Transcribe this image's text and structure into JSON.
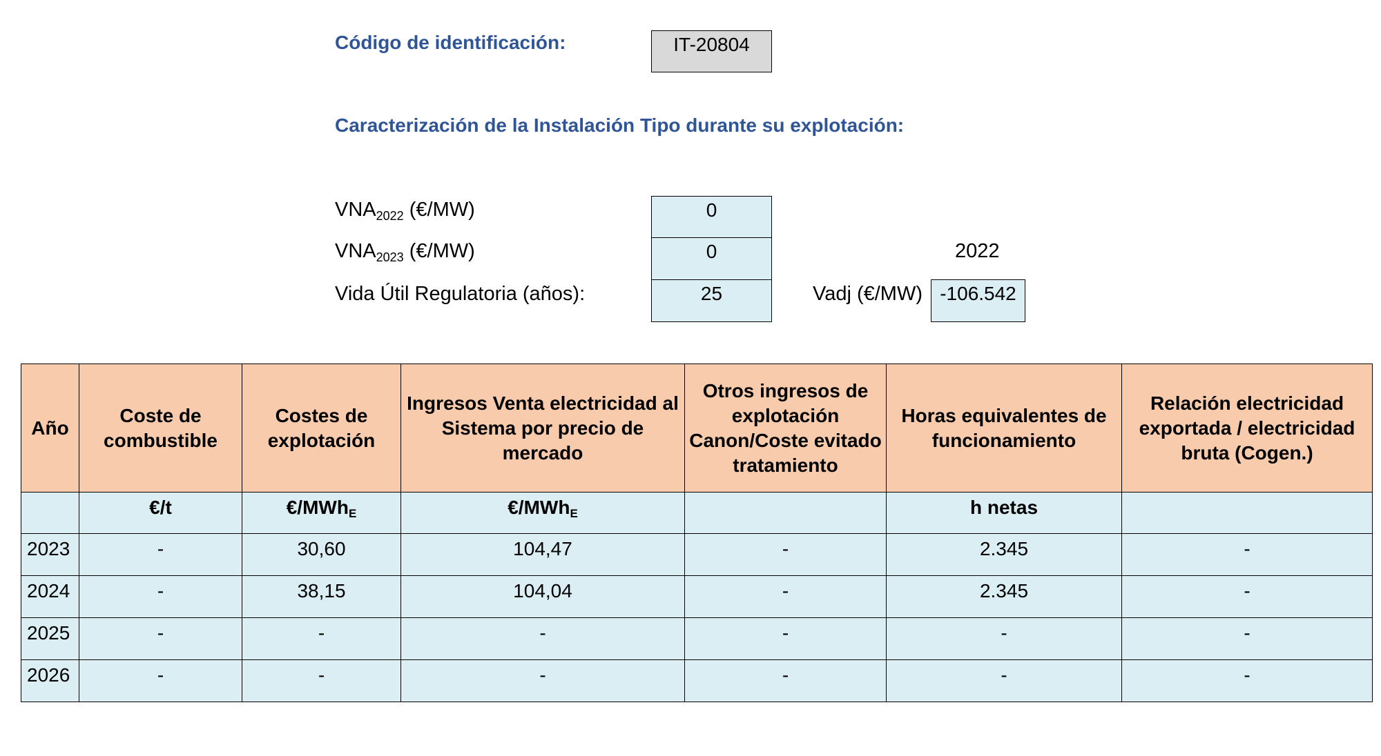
{
  "header": {
    "id_label": "Código de identificación:",
    "id_value": "IT-20804",
    "section_title": "Caracterización de la Instalación Tipo durante su explotación:"
  },
  "params": {
    "vna_2022": {
      "prefix": "VNA",
      "sub": "2022",
      "suffix": " (€/MW)",
      "value": "0"
    },
    "vna_2023": {
      "prefix": "VNA",
      "sub": "2023",
      "suffix": " (€/MW)",
      "value": "0"
    },
    "vida_util": {
      "label": "Vida Útil Regulatoria (años):",
      "value": "25"
    },
    "year_label": "2022",
    "vadj": {
      "label": "Vadj (€/MW)",
      "value": "-106.542"
    }
  },
  "table": {
    "headers": [
      "Año",
      "Coste de combustible",
      "Costes de explotación",
      "Ingresos Venta electricidad al Sistema por precio de mercado",
      "Otros ingresos de explotación Canon/Coste evitado tratamiento",
      "Horas equivalentes de funcionamiento",
      "Relación electricidad exportada / electricidad bruta (Cogen.)"
    ],
    "units": {
      "combustible": "€/t",
      "explotacion_main": "€/MWh",
      "explotacion_sub": "E",
      "ingresos_main": "€/MWh",
      "ingresos_sub": "E",
      "horas": "h netas"
    },
    "rows": [
      [
        "2023",
        "-",
        "30,60",
        "104,47",
        "-",
        "2.345",
        "-"
      ],
      [
        "2024",
        "-",
        "38,15",
        "104,04",
        "-",
        "2.345",
        "-"
      ],
      [
        "2025",
        "-",
        "-",
        "-",
        "-",
        "-",
        "-"
      ],
      [
        "2026",
        "-",
        "-",
        "-",
        "-",
        "-",
        "-"
      ]
    ]
  },
  "colors": {
    "heading_blue": "#2f5597",
    "header_fill": "#f8cbad",
    "cell_fill": "#daeef3",
    "id_box_fill": "#d9d9d9"
  }
}
